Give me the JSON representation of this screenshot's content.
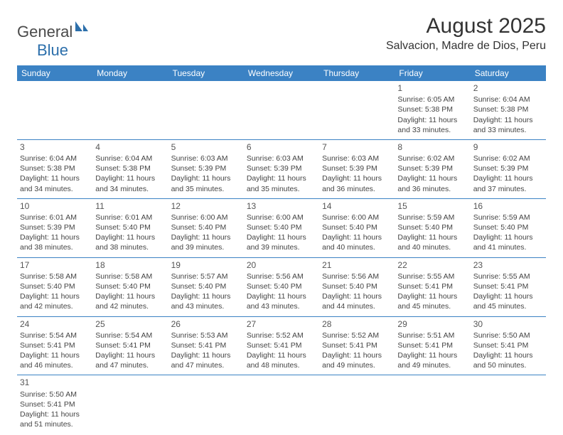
{
  "logo": {
    "part1": "General",
    "part2": "Blue"
  },
  "title": "August 2025",
  "location": "Salvacion, Madre de Dios, Peru",
  "colors": {
    "header_bg": "#3b82c4",
    "header_text": "#ffffff",
    "border": "#3b82c4",
    "logo_gray": "#4a4a4a",
    "logo_blue": "#2c6fab"
  },
  "day_headers": [
    "Sunday",
    "Monday",
    "Tuesday",
    "Wednesday",
    "Thursday",
    "Friday",
    "Saturday"
  ],
  "weeks": [
    [
      null,
      null,
      null,
      null,
      null,
      {
        "n": "1",
        "sr": "6:05 AM",
        "ss": "5:38 PM",
        "dl": "11 hours and 33 minutes."
      },
      {
        "n": "2",
        "sr": "6:04 AM",
        "ss": "5:38 PM",
        "dl": "11 hours and 33 minutes."
      }
    ],
    [
      {
        "n": "3",
        "sr": "6:04 AM",
        "ss": "5:38 PM",
        "dl": "11 hours and 34 minutes."
      },
      {
        "n": "4",
        "sr": "6:04 AM",
        "ss": "5:38 PM",
        "dl": "11 hours and 34 minutes."
      },
      {
        "n": "5",
        "sr": "6:03 AM",
        "ss": "5:39 PM",
        "dl": "11 hours and 35 minutes."
      },
      {
        "n": "6",
        "sr": "6:03 AM",
        "ss": "5:39 PM",
        "dl": "11 hours and 35 minutes."
      },
      {
        "n": "7",
        "sr": "6:03 AM",
        "ss": "5:39 PM",
        "dl": "11 hours and 36 minutes."
      },
      {
        "n": "8",
        "sr": "6:02 AM",
        "ss": "5:39 PM",
        "dl": "11 hours and 36 minutes."
      },
      {
        "n": "9",
        "sr": "6:02 AM",
        "ss": "5:39 PM",
        "dl": "11 hours and 37 minutes."
      }
    ],
    [
      {
        "n": "10",
        "sr": "6:01 AM",
        "ss": "5:39 PM",
        "dl": "11 hours and 38 minutes."
      },
      {
        "n": "11",
        "sr": "6:01 AM",
        "ss": "5:40 PM",
        "dl": "11 hours and 38 minutes."
      },
      {
        "n": "12",
        "sr": "6:00 AM",
        "ss": "5:40 PM",
        "dl": "11 hours and 39 minutes."
      },
      {
        "n": "13",
        "sr": "6:00 AM",
        "ss": "5:40 PM",
        "dl": "11 hours and 39 minutes."
      },
      {
        "n": "14",
        "sr": "6:00 AM",
        "ss": "5:40 PM",
        "dl": "11 hours and 40 minutes."
      },
      {
        "n": "15",
        "sr": "5:59 AM",
        "ss": "5:40 PM",
        "dl": "11 hours and 40 minutes."
      },
      {
        "n": "16",
        "sr": "5:59 AM",
        "ss": "5:40 PM",
        "dl": "11 hours and 41 minutes."
      }
    ],
    [
      {
        "n": "17",
        "sr": "5:58 AM",
        "ss": "5:40 PM",
        "dl": "11 hours and 42 minutes."
      },
      {
        "n": "18",
        "sr": "5:58 AM",
        "ss": "5:40 PM",
        "dl": "11 hours and 42 minutes."
      },
      {
        "n": "19",
        "sr": "5:57 AM",
        "ss": "5:40 PM",
        "dl": "11 hours and 43 minutes."
      },
      {
        "n": "20",
        "sr": "5:56 AM",
        "ss": "5:40 PM",
        "dl": "11 hours and 43 minutes."
      },
      {
        "n": "21",
        "sr": "5:56 AM",
        "ss": "5:40 PM",
        "dl": "11 hours and 44 minutes."
      },
      {
        "n": "22",
        "sr": "5:55 AM",
        "ss": "5:41 PM",
        "dl": "11 hours and 45 minutes."
      },
      {
        "n": "23",
        "sr": "5:55 AM",
        "ss": "5:41 PM",
        "dl": "11 hours and 45 minutes."
      }
    ],
    [
      {
        "n": "24",
        "sr": "5:54 AM",
        "ss": "5:41 PM",
        "dl": "11 hours and 46 minutes."
      },
      {
        "n": "25",
        "sr": "5:54 AM",
        "ss": "5:41 PM",
        "dl": "11 hours and 47 minutes."
      },
      {
        "n": "26",
        "sr": "5:53 AM",
        "ss": "5:41 PM",
        "dl": "11 hours and 47 minutes."
      },
      {
        "n": "27",
        "sr": "5:52 AM",
        "ss": "5:41 PM",
        "dl": "11 hours and 48 minutes."
      },
      {
        "n": "28",
        "sr": "5:52 AM",
        "ss": "5:41 PM",
        "dl": "11 hours and 49 minutes."
      },
      {
        "n": "29",
        "sr": "5:51 AM",
        "ss": "5:41 PM",
        "dl": "11 hours and 49 minutes."
      },
      {
        "n": "30",
        "sr": "5:50 AM",
        "ss": "5:41 PM",
        "dl": "11 hours and 50 minutes."
      }
    ],
    [
      {
        "n": "31",
        "sr": "5:50 AM",
        "ss": "5:41 PM",
        "dl": "11 hours and 51 minutes."
      },
      null,
      null,
      null,
      null,
      null,
      null
    ]
  ],
  "labels": {
    "sunrise": "Sunrise: ",
    "sunset": "Sunset: ",
    "daylight": "Daylight: "
  }
}
